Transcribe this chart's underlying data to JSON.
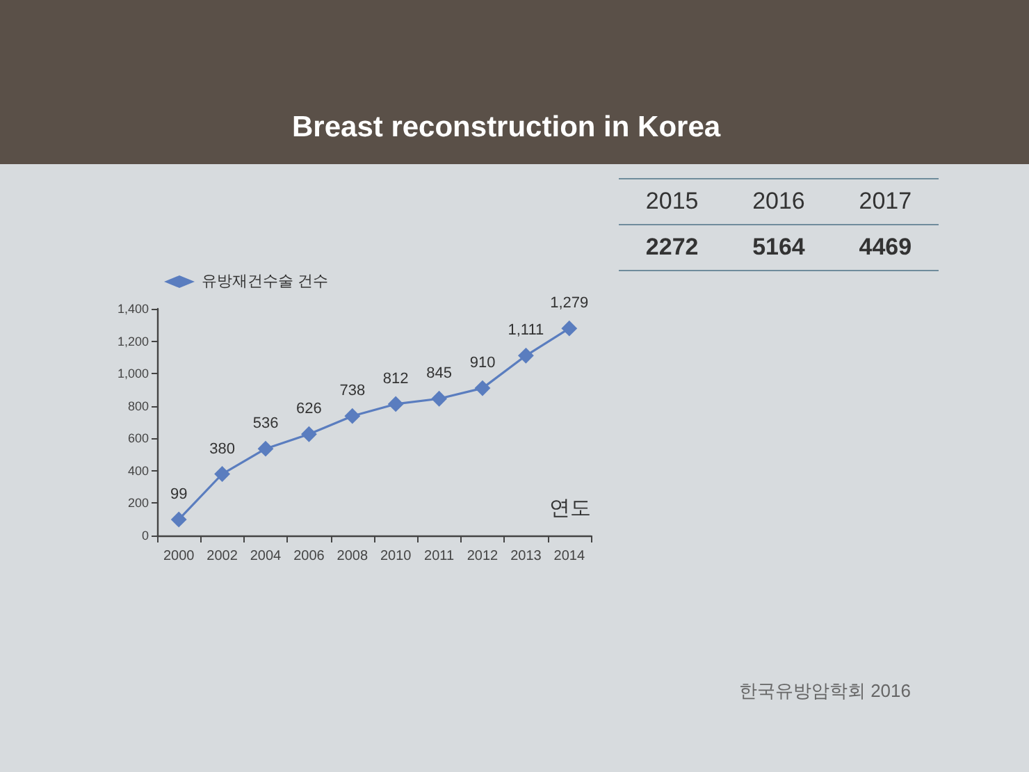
{
  "chart_data": [
    {
      "type": "line",
      "title": "Breast reconstruction in Korea",
      "xlabel": "연도",
      "categories": [
        "2000",
        "2002",
        "2004",
        "2006",
        "2008",
        "2010",
        "2011",
        "2012",
        "2013",
        "2014"
      ],
      "series": [
        {
          "name": "유방재건수술 건수",
          "color": "#5a7dbf",
          "values": [
            99,
            380,
            536,
            626,
            738,
            812,
            845,
            910,
            1111,
            1279
          ],
          "value_labels": [
            "99",
            "380",
            "536",
            "626",
            "738",
            "812",
            "845",
            "910",
            "1,111",
            "1,279"
          ]
        }
      ],
      "ylim": [
        0,
        1400
      ],
      "yticks": [
        0,
        200,
        400,
        600,
        800,
        {
          "value": 1000,
          "label": "1,000"
        },
        {
          "value": 1200,
          "label": "1,200"
        },
        {
          "value": 1400,
          "label": "1,400"
        }
      ],
      "marker": "diamond",
      "legend": "top left",
      "annotations": [
        "한국유방암학회 2016"
      ]
    },
    {
      "type": "other",
      "categories": [
        "2015",
        "2016",
        "2017"
      ],
      "values": [
        2272,
        5164,
        4469
      ],
      "data_labels": true
    }
  ]
}
